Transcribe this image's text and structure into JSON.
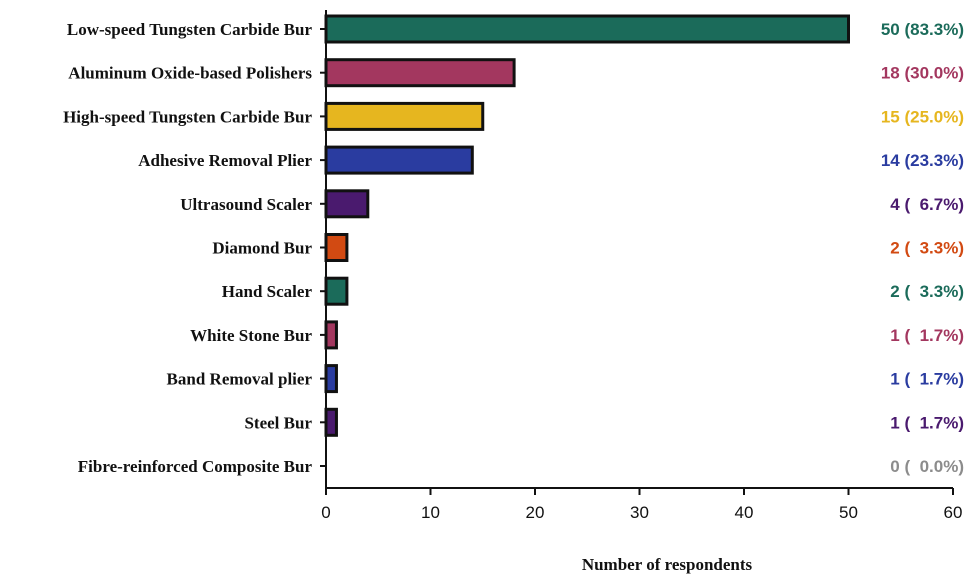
{
  "chart_data": {
    "type": "bar",
    "orientation": "horizontal",
    "categories": [
      "Low-speed Tungsten Carbide Bur",
      "Aluminum Oxide-based Polishers",
      "High-speed Tungsten Carbide Bur",
      "Adhesive Removal Plier",
      "Ultrasound Scaler",
      "Diamond Bur",
      "Hand Scaler",
      "White Stone Bur",
      "Band Removal plier",
      "Steel Bur",
      "Fibre-reinforced Composite Bur"
    ],
    "values": [
      50,
      18,
      15,
      14,
      4,
      2,
      2,
      1,
      1,
      1,
      0
    ],
    "value_labels": [
      "50 (83.3%)",
      "18 (30.0%)",
      "15 (25.0%)",
      "14 (23.3%)",
      "4 (  6.7%)",
      "2 (  3.3%)",
      "2 (  3.3%)",
      "1 (  1.7%)",
      "1 (  1.7%)",
      "1 (  1.7%)",
      "0 (  0.0%)"
    ],
    "colors": [
      "#1b6b5a",
      "#a3375f",
      "#e6b61f",
      "#2a3ca0",
      "#4a1a6e",
      "#d24a12",
      "#1b6b5a",
      "#a3375f",
      "#2a3ca0",
      "#4a1a6e",
      "#8c8c8c"
    ],
    "title": "",
    "xlabel": "Number of respondents",
    "ylabel": "",
    "xlim": [
      0,
      60
    ],
    "xticks": [
      0,
      10,
      20,
      30,
      40,
      50,
      60
    ],
    "grid": false,
    "legend": "none"
  }
}
